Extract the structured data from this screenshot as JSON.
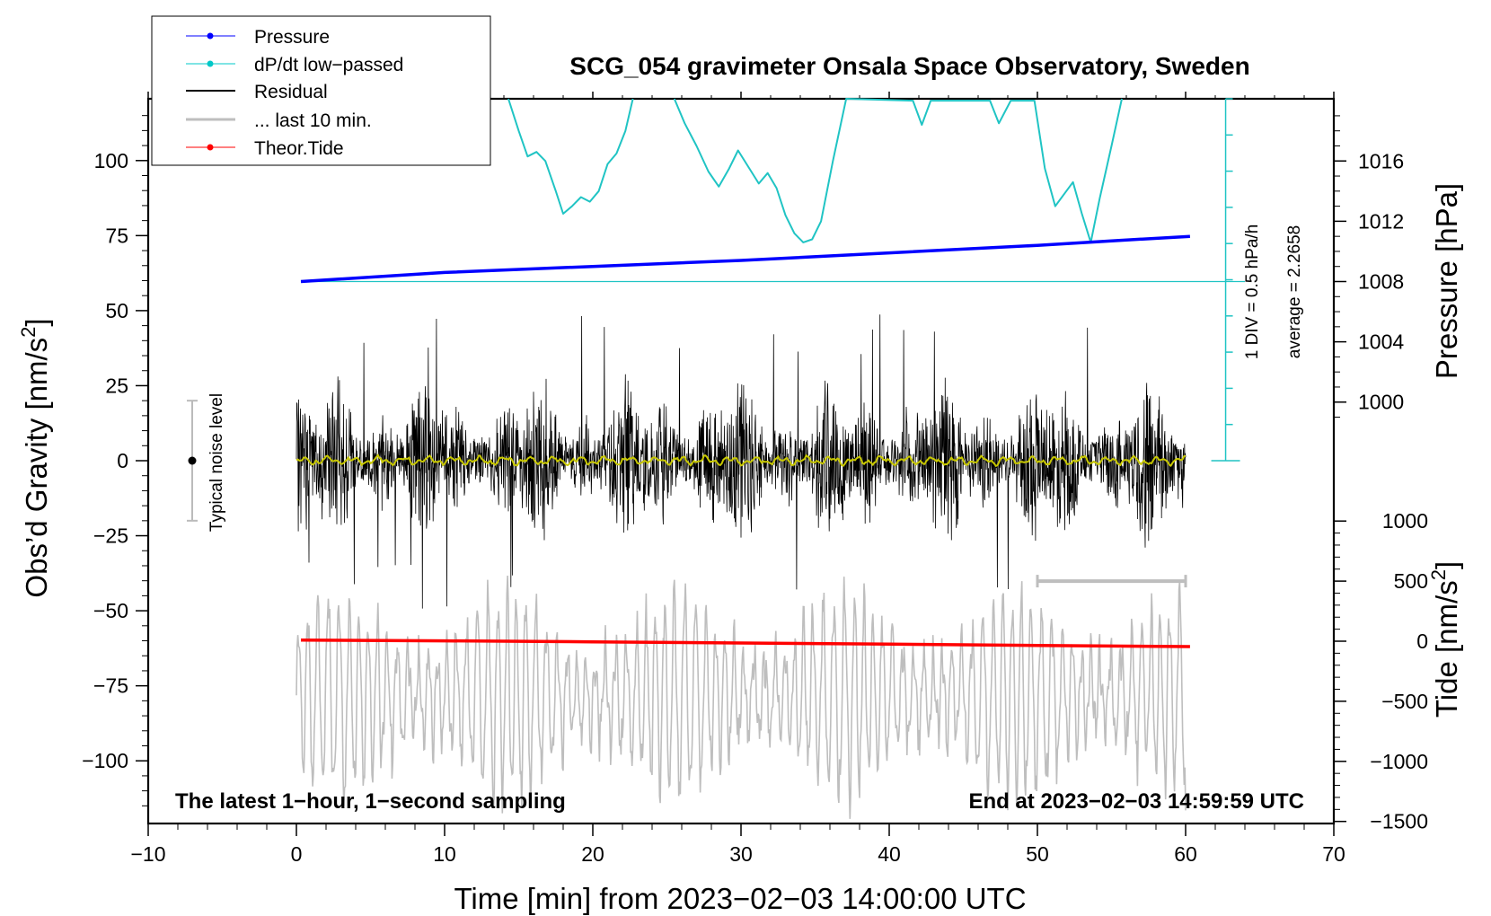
{
  "chart_data": {
    "type": "line",
    "title": "SCG_054 gravimeter Onsala Space Observatory, Sweden",
    "xlabel": "Time [min] from 2023−02−03 14:00:00 UTC",
    "ylabel_left": "Obs’d Gravity [nm/s",
    "ylabel_left_sup": "2",
    "ylabel_left_close": "]",
    "ylabel_right_pressure": "Pressure [hPa]",
    "ylabel_right_tide": "Tide [nm/s",
    "ylabel_right_tide_sup": "2",
    "ylabel_right_tide_close": "]",
    "xlim": [
      -10,
      70
    ],
    "ylim_left": [
      -120,
      120
    ],
    "x_ticks": [
      "−10",
      "0",
      "10",
      "20",
      "30",
      "40",
      "50",
      "60",
      "70"
    ],
    "x_tick_values": [
      -10,
      0,
      10,
      20,
      30,
      40,
      50,
      60,
      70
    ],
    "y_left_ticks": [
      "100",
      "75",
      "50",
      "25",
      "0",
      "−25",
      "−50",
      "−75",
      "−100"
    ],
    "y_left_tick_values": [
      100,
      75,
      50,
      25,
      0,
      -25,
      -50,
      -75,
      -100
    ],
    "pressure_ticks": [
      "1016",
      "1012",
      "1008",
      "1004",
      "1000"
    ],
    "pressure_tick_values": [
      1016,
      1012,
      1008,
      1004,
      1000
    ],
    "tide_ticks": [
      "1000",
      "500",
      "0",
      "−500",
      "−1000",
      "−1500"
    ],
    "tide_tick_values": [
      1000,
      500,
      0,
      -500,
      -1000,
      -1500
    ],
    "legend": [
      {
        "label": "Pressure",
        "color": "#0000ff",
        "marker": true
      },
      {
        "label": "dP/dt low−passed",
        "color": "#00c8c8",
        "marker": true
      },
      {
        "label": "Residual",
        "color": "#000000",
        "marker": false
      },
      {
        "label": "... last 10 min.",
        "color": "#bebebe",
        "marker": false
      },
      {
        "label": "Theor.Tide",
        "color": "#ff0000",
        "marker": true
      }
    ],
    "annotations": {
      "bottom_left": "The latest 1−hour, 1−second sampling",
      "bottom_right": "End at 2023−02−03 14:59:59 UTC",
      "noise_level": "Typical noise level",
      "div_label": "1 DIV = 0.5 hPa/h",
      "average_label": "average = 2.2658"
    },
    "noise_level_range": [
      -20,
      20
    ],
    "last_10_min_range": [
      50,
      60
    ],
    "series": [
      {
        "name": "Pressure",
        "axis": "pressure",
        "color": "#0000ff",
        "x": [
          0.3,
          10,
          20,
          30,
          40,
          50,
          55,
          60.3
        ],
        "values": [
          1008.0,
          1008.6,
          1009.0,
          1009.4,
          1009.9,
          1010.4,
          1010.7,
          1011.0
        ]
      },
      {
        "name": "Theor.Tide",
        "axis": "tide",
        "color": "#ff0000",
        "x": [
          0.3,
          10,
          20,
          30,
          40,
          50,
          60.3
        ],
        "values": [
          10,
          3,
          -5,
          -15,
          -25,
          -35,
          -45
        ]
      },
      {
        "name": "dP/dt low−passed",
        "axis": "pressure",
        "color": "#20c4c4",
        "x": [
          14.3,
          15,
          15.6,
          16.2,
          16.8,
          17.5,
          18,
          18.6,
          19.2,
          19.8,
          20.4,
          21,
          21.6,
          22.2,
          22.7,
          25.5,
          26.2,
          27,
          27.8,
          28.5,
          29.2,
          29.8,
          30.5,
          31.2,
          31.8,
          32.4,
          33,
          33.6,
          34.2,
          34.8,
          35.4,
          36.2,
          37.1,
          41.6,
          42.2,
          42.8,
          46.8,
          47.4,
          48.2,
          49.8,
          50.5,
          51.2,
          51.8,
          52.4,
          53,
          53.6,
          54.2,
          55,
          55.7
        ],
        "values": [
          1021,
          1018,
          1016.3,
          1016.6,
          1016,
          1014,
          1012.5,
          1013.0,
          1013.6,
          1013.3,
          1014,
          1015.8,
          1016.5,
          1018,
          1021,
          1021,
          1018.5,
          1017,
          1015.3,
          1014.3,
          1015.5,
          1016.7,
          1015.6,
          1014.5,
          1015.2,
          1014.2,
          1012.4,
          1011.2,
          1010.6,
          1010.8,
          1012,
          1016,
          1021,
          1020,
          1018.4,
          1020,
          1020,
          1018.5,
          1020,
          1020,
          1015.5,
          1013,
          1013.8,
          1014.6,
          1012.5,
          1010.6,
          1013.5,
          1017,
          1021
        ]
      },
      {
        "name": "Residual",
        "axis": "left",
        "color": "#000000",
        "x_range": [
          0,
          60
        ],
        "typical_range": [
          -35,
          50
        ]
      },
      {
        "name": "... last 10 min.",
        "axis": "tide",
        "color": "#bebebe",
        "x_range": [
          0,
          60
        ],
        "typical_range": [
          -1300,
          500
        ]
      }
    ]
  }
}
